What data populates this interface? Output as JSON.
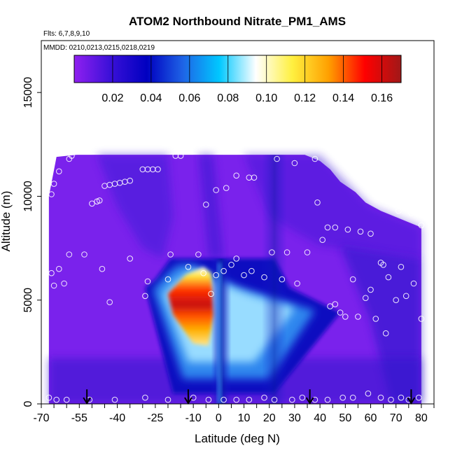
{
  "chart_data": {
    "type": "heatmap",
    "title": "ATOM2 Northbound Nitrate_PM1_AMS",
    "flights_note": "Flts: 6,7,8,9,10",
    "dates_note": "MMDD: 0210,0213,0215,0218,0219",
    "xlabel": "Latitude (deg N)",
    "ylabel": "Altitude (m)",
    "xlim": [
      -70,
      85
    ],
    "ylim": [
      0,
      17500
    ],
    "x_ticks": [
      -70,
      -55,
      -40,
      -25,
      -10,
      0,
      10,
      20,
      30,
      40,
      50,
      60,
      70,
      80
    ],
    "x_tick_labels": [
      "-70",
      "-55",
      "-40",
      "-25",
      "-10",
      "0",
      "10",
      "20",
      "30",
      "40",
      "50",
      "60",
      "70",
      "80"
    ],
    "x_minor_ticks": [
      -65,
      -60,
      -50,
      -45,
      -35,
      -30,
      -20,
      -15,
      -5,
      5,
      15,
      25,
      35,
      45,
      55,
      65,
      75,
      85
    ],
    "y_ticks": [
      0,
      5000,
      10000,
      15000
    ],
    "y_tick_labels": [
      "0",
      "5000",
      "10000",
      "15000"
    ],
    "colorbar": {
      "range": [
        0.0,
        0.17
      ],
      "ticks": [
        0.02,
        0.04,
        0.06,
        0.08,
        0.1,
        0.12,
        0.14,
        0.16
      ],
      "tick_labels": [
        "0.02",
        "0.04",
        "0.06",
        "0.08",
        "0.10",
        "0.12",
        "0.14",
        "0.16"
      ],
      "colors": [
        "#9020f0",
        "#3a10d8",
        "#0000c0",
        "#1e64e6",
        "#00c8ff",
        "#ffffff",
        "#fff040",
        "#ffa000",
        "#ff0000",
        "#a01818"
      ]
    },
    "field_description": "Mostly background 0.005-0.03 (purple to dark blue); plume centered near -8 deg N, 5000 m peaking about 0.15; dark-blue columns near 0 deg N and 20 deg N; clear air above data envelope.",
    "envelope_top_m": [
      [
        -67,
        10000
      ],
      [
        -64,
        11900
      ],
      [
        -56,
        12000
      ],
      [
        -40,
        12000
      ],
      [
        -20,
        12000
      ],
      [
        0,
        12000
      ],
      [
        20,
        12000
      ],
      [
        34,
        12000
      ],
      [
        40,
        11700
      ],
      [
        44,
        11300
      ],
      [
        48,
        10700
      ],
      [
        54,
        10200
      ],
      [
        58,
        9700
      ],
      [
        64,
        9300
      ],
      [
        70,
        9000
      ],
      [
        76,
        8700
      ],
      [
        80,
        8500
      ]
    ],
    "flight_path_points": [
      [
        -66,
        10100
      ],
      [
        -65,
        10600
      ],
      [
        -63,
        11200
      ],
      [
        -59,
        11800
      ],
      [
        -58,
        11950
      ],
      [
        -50,
        9650
      ],
      [
        -48,
        9750
      ],
      [
        -47,
        9800
      ],
      [
        -45,
        10500
      ],
      [
        -43,
        10550
      ],
      [
        -41,
        10600
      ],
      [
        -39,
        10650
      ],
      [
        -37,
        10700
      ],
      [
        -35,
        10750
      ],
      [
        -30,
        11300
      ],
      [
        -28,
        11300
      ],
      [
        -26,
        11300
      ],
      [
        -24,
        11300
      ],
      [
        -17,
        11950
      ],
      [
        -15,
        11950
      ],
      [
        -5,
        9600
      ],
      [
        -1,
        10300
      ],
      [
        3,
        10400
      ],
      [
        7,
        11000
      ],
      [
        12,
        10900
      ],
      [
        14,
        10900
      ],
      [
        23,
        11800
      ],
      [
        30,
        11600
      ],
      [
        38,
        11800
      ],
      [
        39,
        9700
      ],
      [
        41,
        7900
      ],
      [
        43,
        8500
      ],
      [
        46,
        8500
      ],
      [
        51,
        8400
      ],
      [
        56,
        8300
      ],
      [
        60,
        8200
      ],
      [
        71,
        9300
      ],
      [
        76,
        9200
      ],
      [
        80,
        8600
      ],
      [
        -66,
        6300
      ],
      [
        -65,
        5700
      ],
      [
        -63,
        6500
      ],
      [
        -61,
        5800
      ],
      [
        -59,
        7200
      ],
      [
        -53,
        7200
      ],
      [
        -46,
        6500
      ],
      [
        -43,
        4900
      ],
      [
        -35,
        7000
      ],
      [
        -29,
        5200
      ],
      [
        -28,
        5900
      ],
      [
        -20,
        6000
      ],
      [
        -19,
        7200
      ],
      [
        -12,
        6600
      ],
      [
        -8,
        7200
      ],
      [
        -6,
        6300
      ],
      [
        -3,
        5300
      ],
      [
        -1,
        6200
      ],
      [
        2,
        6400
      ],
      [
        5,
        6700
      ],
      [
        7,
        7000
      ],
      [
        10,
        6200
      ],
      [
        13,
        6400
      ],
      [
        18,
        6100
      ],
      [
        21,
        7300
      ],
      [
        25,
        6000
      ],
      [
        27,
        7300
      ],
      [
        31,
        5800
      ],
      [
        35,
        7300
      ],
      [
        44,
        4700
      ],
      [
        46,
        4800
      ],
      [
        48,
        4400
      ],
      [
        50,
        4200
      ],
      [
        53,
        6000
      ],
      [
        55,
        4200
      ],
      [
        58,
        5100
      ],
      [
        60,
        5500
      ],
      [
        62,
        4100
      ],
      [
        64,
        6800
      ],
      [
        65,
        6700
      ],
      [
        66,
        3400
      ],
      [
        67,
        6100
      ],
      [
        70,
        5000
      ],
      [
        72,
        6600
      ],
      [
        74,
        5200
      ],
      [
        77,
        5800
      ],
      [
        80,
        4100
      ],
      [
        -67,
        300
      ],
      [
        -64,
        200
      ],
      [
        -60,
        200
      ],
      [
        -51,
        200
      ],
      [
        -41,
        200
      ],
      [
        -29,
        300
      ],
      [
        -20,
        200
      ],
      [
        -10,
        300
      ],
      [
        -4,
        200
      ],
      [
        2,
        200
      ],
      [
        7,
        200
      ],
      [
        12,
        200
      ],
      [
        18,
        300
      ],
      [
        22,
        200
      ],
      [
        29,
        200
      ],
      [
        33,
        300
      ],
      [
        38,
        200
      ],
      [
        43,
        200
      ],
      [
        49,
        300
      ],
      [
        53,
        300
      ],
      [
        59,
        500
      ],
      [
        64,
        300
      ],
      [
        68,
        200
      ],
      [
        72,
        300
      ],
      [
        75,
        200
      ],
      [
        79,
        300
      ]
    ],
    "arrow_latitudes": [
      -52,
      -12,
      36,
      76
    ]
  }
}
